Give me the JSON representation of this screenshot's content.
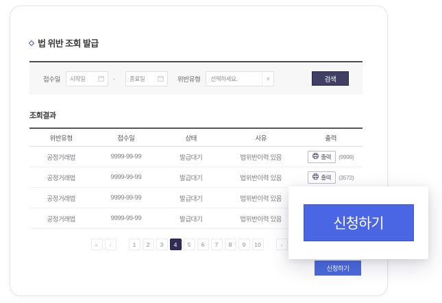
{
  "page": {
    "title": "법 위반 조회 발급"
  },
  "filter": {
    "receipt_date_label": "접수일",
    "start_date_placeholder": "시작일",
    "date_separator": "-",
    "end_date_placeholder": "종료일",
    "violation_type_label": "위반유형",
    "violation_type_value": "선택하세요.",
    "search_button_label": "검색"
  },
  "results": {
    "heading": "조회결과",
    "columns": [
      "위반유형",
      "접수일",
      "상태",
      "사유",
      "출력"
    ],
    "rows": [
      {
        "violation_type": "공정거래법",
        "receipt_date": "9999-99-99",
        "status": "발급대기",
        "reason": "법위반이력 있음",
        "print_label": "출력",
        "count": "(9999)"
      },
      {
        "violation_type": "공정거래법",
        "receipt_date": "9999-99-99",
        "status": "발급대기",
        "reason": "법위반이력 있음",
        "print_label": "출력",
        "count": "(3572)"
      },
      {
        "violation_type": "공정거래법",
        "receipt_date": "9999-99-99",
        "status": "발급대기",
        "reason": "법위반이력 있음",
        "print_label": null,
        "count": null
      },
      {
        "violation_type": "공정거래법",
        "receipt_date": "9999-99-99",
        "status": "발급대기",
        "reason": "법위반이력 있음",
        "print_label": null,
        "count": null
      }
    ]
  },
  "pagination": {
    "first": "«",
    "prev": "‹",
    "next": "›",
    "last": "»",
    "pages": [
      "1",
      "2",
      "3",
      "4",
      "5",
      "6",
      "7",
      "8",
      "9",
      "10"
    ],
    "active_page": "4"
  },
  "apply": {
    "small_button_label": "신청하기",
    "overlay_button_label": "신청하기"
  },
  "icons": {
    "title_diamond": "diamond-icon",
    "calendar": "calendar-icon",
    "chevron_down": "∨",
    "printer": "printer-icon"
  },
  "colors": {
    "search_button_bg": "#413f63",
    "active_page_bg": "#302c52",
    "apply_blue": "#4a66e5",
    "filter_bg": "#f7f7f8"
  }
}
